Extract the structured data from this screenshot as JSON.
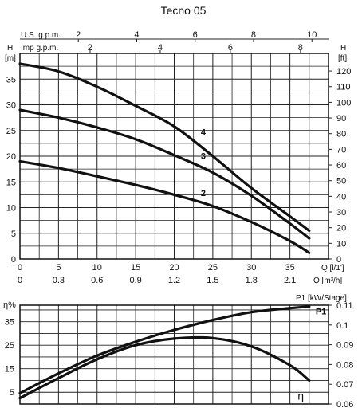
{
  "chart_data": [
    {
      "type": "line",
      "title": "Tecno 05",
      "left_unit": "[m]",
      "left_axis_letter": "H",
      "right_unit": "[ft]",
      "right_axis_letter": "H",
      "top_scale_1_label": "U.S. g.p.m.",
      "top_scale_2_label": "Imp g.p.m.",
      "x_label_1": "Q [l/1']",
      "x_label_2": "Q [m³/h]",
      "xlim": [
        0,
        40
      ],
      "ylim": [
        0,
        40
      ],
      "grid": true,
      "x_ticks": [
        0,
        5,
        10,
        15,
        20,
        25,
        30,
        35
      ],
      "x_ticks_m3h": [
        "0",
        "0.3",
        "0.6",
        "0.9",
        "1.2",
        "1.5",
        "1.8",
        "2.1"
      ],
      "y_ticks": [
        0,
        5,
        10,
        15,
        20,
        25,
        30,
        35
      ],
      "y_ticks_ft": [
        0,
        10,
        20,
        30,
        40,
        50,
        60,
        70,
        80,
        90,
        100,
        110,
        120
      ],
      "top_ticks_usgpm": [
        "2",
        "4",
        "6",
        "8",
        "10"
      ],
      "top_ticks_impgpm": [
        "2",
        "4",
        "6",
        "8"
      ],
      "series": [
        {
          "name": "4",
          "x": [
            0,
            5,
            10,
            15,
            20,
            25,
            30,
            35,
            37.5
          ],
          "y": [
            38.0,
            36.5,
            33.5,
            29.8,
            25.8,
            20.0,
            13.8,
            8.3,
            5.5
          ]
        },
        {
          "name": "3",
          "x": [
            0,
            5,
            10,
            15,
            20,
            25,
            30,
            35,
            37.5
          ],
          "y": [
            29.0,
            27.5,
            25.6,
            23.3,
            20.2,
            16.8,
            12.3,
            6.9,
            4.0
          ]
        },
        {
          "name": "2",
          "x": [
            0,
            5,
            10,
            15,
            20,
            25,
            30,
            35,
            37.5
          ],
          "y": [
            19.0,
            17.7,
            16.1,
            14.4,
            12.5,
            10.3,
            7.2,
            3.5,
            1.2
          ]
        }
      ]
    },
    {
      "type": "line",
      "left_axis_label": "η%",
      "right_axis_label": "P1 [kW/Stage]",
      "xlim": [
        0,
        40
      ],
      "ylim": [
        0,
        42
      ],
      "y2lim": [
        0.06,
        0.11
      ],
      "grid": true,
      "y_ticks": [
        5,
        15,
        25,
        35
      ],
      "y2_ticks": [
        "0.06",
        "0.07",
        "0.08",
        "0.09",
        "0.1",
        "0.11"
      ],
      "series": [
        {
          "name": "P1",
          "axis": "right",
          "x": [
            0,
            5,
            10,
            15,
            20,
            25,
            30,
            35,
            37.5
          ],
          "y": [
            0.0655,
            0.0755,
            0.0845,
            0.0915,
            0.0975,
            0.1025,
            0.1065,
            0.1085,
            0.1093
          ]
        },
        {
          "name": "η",
          "axis": "left",
          "x": [
            0,
            5,
            10,
            15,
            20,
            25,
            30,
            35,
            37.5
          ],
          "y": [
            2.5,
            11.0,
            19.0,
            25.0,
            27.8,
            28.0,
            24.5,
            16.5,
            10.0
          ]
        }
      ]
    }
  ]
}
